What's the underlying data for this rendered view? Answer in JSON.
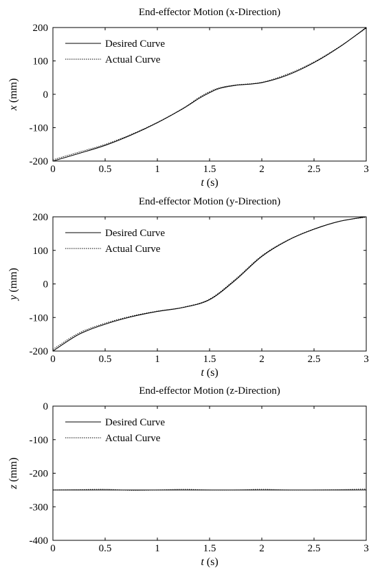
{
  "chart_data": [
    {
      "type": "line",
      "title": "End-effector Motion (x-Direction)",
      "xlabel": {
        "var": "t",
        "unit": " (s)"
      },
      "ylabel": {
        "var": "x",
        "unit": " (mm)"
      },
      "xlim": [
        0,
        3
      ],
      "ylim": [
        -200,
        200
      ],
      "xticks": [
        0,
        0.5,
        1,
        1.5,
        2,
        2.5,
        3
      ],
      "yticks": [
        -200,
        -100,
        0,
        100,
        200
      ],
      "legend_position": "top-left",
      "grid": false,
      "series": [
        {
          "name": "Desired Curve",
          "style": "solid",
          "x": [
            0,
            0.25,
            0.5,
            0.75,
            1.0,
            1.25,
            1.4,
            1.5,
            1.6,
            1.75,
            2.0,
            2.25,
            2.5,
            2.75,
            3.0
          ],
          "y": [
            -200,
            -177,
            -153,
            -122,
            -85,
            -42,
            -12,
            5,
            18,
            27,
            35,
            58,
            95,
            143,
            200
          ]
        },
        {
          "name": "Actual Curve",
          "style": "dotted",
          "x": [
            0,
            0.25,
            0.5,
            0.75,
            1.0,
            1.25,
            1.4,
            1.5,
            1.6,
            1.75,
            2.0,
            2.25,
            2.5,
            2.75,
            3.0
          ],
          "y": [
            -196,
            -173,
            -150,
            -120,
            -84,
            -41,
            -9,
            8,
            20,
            28,
            36,
            61,
            97,
            144,
            198
          ]
        }
      ]
    },
    {
      "type": "line",
      "title": "End-effector Motion (y-Direction)",
      "xlabel": {
        "var": "t",
        "unit": " (s)"
      },
      "ylabel": {
        "var": "y",
        "unit": " (mm)"
      },
      "xlim": [
        0,
        3
      ],
      "ylim": [
        -200,
        200
      ],
      "xticks": [
        0,
        0.5,
        1,
        1.5,
        2,
        2.5,
        3
      ],
      "yticks": [
        -200,
        -100,
        0,
        100,
        200
      ],
      "legend_position": "top-left",
      "grid": false,
      "series": [
        {
          "name": "Desired Curve",
          "style": "solid",
          "x": [
            0,
            0.25,
            0.5,
            0.75,
            1.0,
            1.25,
            1.5,
            1.75,
            2.0,
            2.25,
            2.5,
            2.75,
            3.0
          ],
          "y": [
            -200,
            -150,
            -120,
            -98,
            -82,
            -70,
            -47,
            12,
            82,
            130,
            163,
            187,
            200
          ]
        },
        {
          "name": "Actual Curve",
          "style": "dotted",
          "x": [
            0,
            0.25,
            0.5,
            0.75,
            1.0,
            1.25,
            1.5,
            1.75,
            2.0,
            2.25,
            2.5,
            2.75,
            3.0
          ],
          "y": [
            -195,
            -146,
            -117,
            -96,
            -81,
            -69,
            -45,
            15,
            84,
            131,
            164,
            187,
            199
          ]
        }
      ]
    },
    {
      "type": "line",
      "title": "End-effector Motion (z-Direction)",
      "xlabel": {
        "var": "t",
        "unit": " (s)"
      },
      "ylabel": {
        "var": "z",
        "unit": " (mm)"
      },
      "xlim": [
        0,
        3
      ],
      "ylim": [
        -400,
        0
      ],
      "xticks": [
        0,
        0.5,
        1,
        1.5,
        2,
        2.5,
        3
      ],
      "yticks": [
        -400,
        -300,
        -200,
        -100,
        0
      ],
      "legend_position": "top-left",
      "grid": false,
      "series": [
        {
          "name": "Desired Curve",
          "style": "solid",
          "x": [
            0,
            0.5,
            1.0,
            1.5,
            2.0,
            2.5,
            3.0
          ],
          "y": [
            -250,
            -250,
            -250,
            -250,
            -250,
            -250,
            -250
          ]
        },
        {
          "name": "Actual Curve",
          "style": "dotted",
          "x": [
            0,
            0.25,
            0.5,
            0.75,
            1.0,
            1.25,
            1.5,
            1.75,
            2.0,
            2.25,
            2.5,
            2.75,
            3.0
          ],
          "y": [
            -250,
            -249,
            -248,
            -251,
            -250,
            -248,
            -250,
            -250,
            -248,
            -250,
            -250,
            -249,
            -247
          ]
        }
      ]
    }
  ]
}
